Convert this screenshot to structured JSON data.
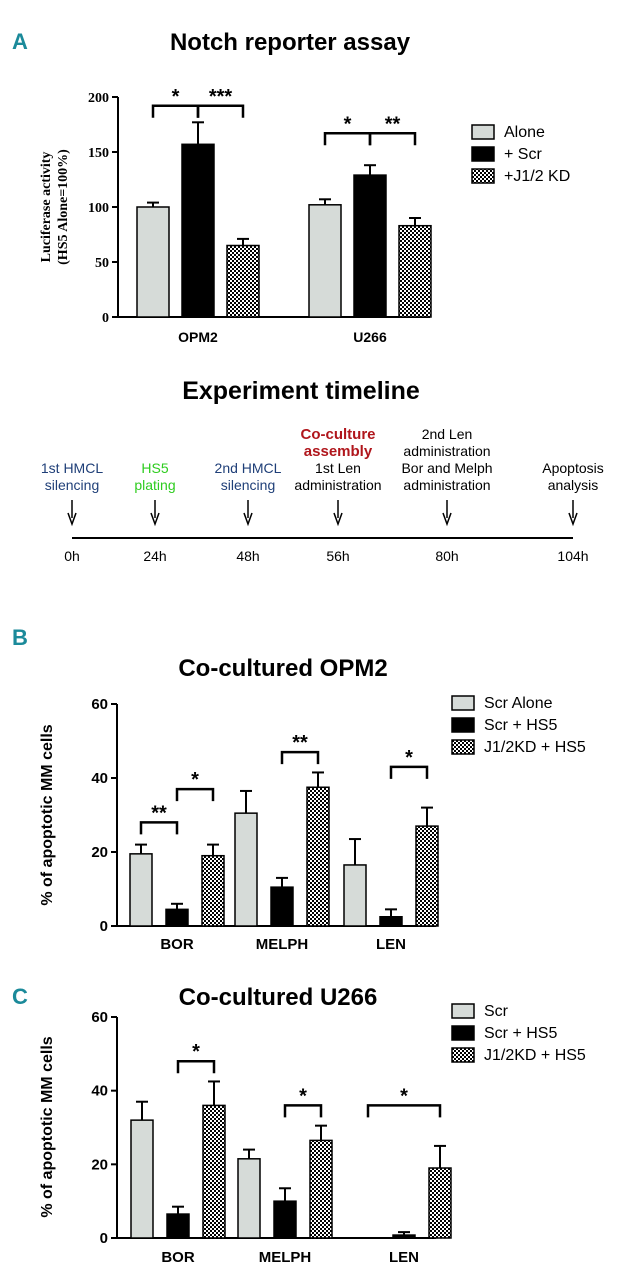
{
  "colors": {
    "panel_letter": "#1b8a9a",
    "alone": "#d6dbd8",
    "scr": "#000000",
    "kd_pattern": "checker",
    "navy": "#1f3f78",
    "green": "#2ecc1f",
    "red": "#b0161c"
  },
  "panel_letters": {
    "a": "A",
    "b": "B",
    "c": "C"
  },
  "timeline": {
    "title": "Experiment timeline",
    "events": [
      {
        "time": "0h",
        "lines": [
          "1st HMCL",
          "silencing"
        ],
        "color": "navy"
      },
      {
        "time": "24h",
        "lines": [
          "HS5",
          "plating"
        ],
        "color": "green"
      },
      {
        "time": "48h",
        "lines": [
          "2nd HMCL",
          "silencing"
        ],
        "color": "navy"
      },
      {
        "time": "56h",
        "heading": [
          "Co-culture",
          "assembly"
        ],
        "lines": [
          "1st Len",
          "administration"
        ],
        "color": "black"
      },
      {
        "time": "80h",
        "lines": [
          "2nd Len",
          "administration",
          "Bor and Melph",
          "administration"
        ],
        "color": "black"
      },
      {
        "time": "104h",
        "lines": [
          "Apoptosis",
          "analysis"
        ],
        "color": "black"
      }
    ]
  },
  "chart_data": [
    {
      "id": "A",
      "type": "bar",
      "title": "Notch reporter assay",
      "ylabel_lines": [
        "Luciferase activity",
        "(HS5 Alone=100%)"
      ],
      "xlabel": "",
      "ylim": [
        0,
        200
      ],
      "yticks": [
        0,
        50,
        100,
        150,
        200
      ],
      "categories": [
        "OPM2",
        "U266"
      ],
      "series": [
        {
          "name": "Alone",
          "fill": "alone",
          "values": [
            100,
            102
          ],
          "errors": [
            4,
            5
          ]
        },
        {
          "name": "+ Scr",
          "fill": "scr",
          "values": [
            157,
            129
          ],
          "errors": [
            20,
            9
          ]
        },
        {
          "name": "+J1/2 KD",
          "fill": "kd",
          "values": [
            65,
            83
          ],
          "errors": [
            6,
            7
          ]
        }
      ],
      "annotations": [
        {
          "group": 0,
          "from": 0,
          "to": 1,
          "label": "*",
          "level": 192
        },
        {
          "group": 0,
          "from": 1,
          "to": 2,
          "label": "***",
          "level": 192
        },
        {
          "group": 1,
          "from": 0,
          "to": 1,
          "label": "*",
          "level": 167
        },
        {
          "group": 1,
          "from": 1,
          "to": 2,
          "label": "**",
          "level": 167
        }
      ]
    },
    {
      "id": "B",
      "type": "bar",
      "title": "Co-cultured OPM2",
      "ylabel": "% of apoptotic MM cells",
      "xlabel": "",
      "ylim": [
        0,
        60
      ],
      "yticks": [
        0,
        20,
        40,
        60
      ],
      "categories": [
        "BOR",
        "MELPH",
        "LEN"
      ],
      "series": [
        {
          "name": "Scr Alone",
          "fill": "alone",
          "values": [
            19.5,
            30.5,
            16.5
          ],
          "errors": [
            2.5,
            6,
            7
          ]
        },
        {
          "name": "Scr + HS5",
          "fill": "scr",
          "values": [
            4.5,
            10.5,
            2.5
          ],
          "errors": [
            1.5,
            2.5,
            2
          ]
        },
        {
          "name": "J1/2KD + HS5",
          "fill": "kd",
          "values": [
            19,
            37.5,
            27
          ],
          "errors": [
            3,
            4,
            5
          ]
        }
      ],
      "annotations": [
        {
          "group": 0,
          "from": 0,
          "to": 1,
          "label": "**",
          "level": 28
        },
        {
          "group": 0,
          "from": 1,
          "to": 2,
          "label": "*",
          "level": 37
        },
        {
          "group": 1,
          "from": 1,
          "to": 2,
          "label": "**",
          "level": 47
        },
        {
          "group": 2,
          "from": 1,
          "to": 2,
          "label": "*",
          "level": 43
        }
      ]
    },
    {
      "id": "C",
      "type": "bar",
      "title": "Co-cultured U266",
      "ylabel": "% of apoptotic MM cells",
      "xlabel": "",
      "ylim": [
        0,
        60
      ],
      "yticks": [
        0,
        20,
        40,
        60
      ],
      "categories": [
        "BOR",
        "MELPH",
        "LEN"
      ],
      "series": [
        {
          "name": "Scr",
          "fill": "alone",
          "values": [
            32,
            21.5,
            0
          ],
          "errors": [
            5,
            2.5,
            0
          ]
        },
        {
          "name": "Scr + HS5",
          "fill": "scr",
          "values": [
            6.5,
            10,
            0.8
          ],
          "errors": [
            2,
            3.5,
            0.8
          ]
        },
        {
          "name": "J1/2KD + HS5",
          "fill": "kd",
          "values": [
            36,
            26.5,
            19
          ],
          "errors": [
            6.5,
            4,
            6
          ]
        }
      ],
      "annotations": [
        {
          "group": 0,
          "from": 1,
          "to": 2,
          "label": "*",
          "level": 48
        },
        {
          "group": 1,
          "from": 1,
          "to": 2,
          "label": "*",
          "level": 36
        },
        {
          "group": 2,
          "from": 0,
          "to": 2,
          "label": "*",
          "level": 36
        }
      ]
    }
  ]
}
